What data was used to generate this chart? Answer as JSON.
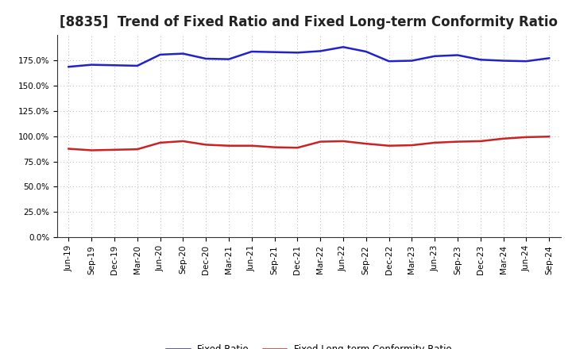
{
  "title": "[8835]  Trend of Fixed Ratio and Fixed Long-term Conformity Ratio",
  "x_labels": [
    "Jun-19",
    "Sep-19",
    "Dec-19",
    "Mar-20",
    "Jun-20",
    "Sep-20",
    "Dec-20",
    "Mar-21",
    "Jun-21",
    "Sep-21",
    "Dec-21",
    "Mar-22",
    "Jun-22",
    "Sep-22",
    "Dec-22",
    "Mar-23",
    "Jun-23",
    "Sep-23",
    "Dec-23",
    "Mar-24",
    "Jun-24",
    "Sep-24"
  ],
  "fixed_ratio": [
    168.5,
    170.5,
    170.0,
    169.5,
    180.5,
    181.5,
    176.5,
    176.0,
    183.5,
    183.0,
    182.5,
    184.0,
    188.0,
    183.5,
    174.0,
    174.5,
    179.0,
    180.0,
    175.5,
    174.5,
    174.0,
    177.0
  ],
  "fixed_lt_ratio": [
    87.5,
    86.0,
    86.5,
    87.0,
    93.5,
    95.0,
    91.5,
    90.5,
    90.5,
    89.0,
    88.5,
    94.5,
    95.0,
    92.5,
    90.5,
    91.0,
    93.5,
    94.5,
    95.0,
    97.5,
    99.0,
    99.5
  ],
  "fixed_ratio_color": "#2222cc",
  "fixed_lt_ratio_color": "#cc2222",
  "ylim": [
    0,
    200
  ],
  "yticks": [
    0.0,
    25.0,
    50.0,
    75.0,
    100.0,
    125.0,
    150.0,
    175.0
  ],
  "background_color": "#ffffff",
  "grid_color": "#aaaaaa",
  "legend_fixed_ratio": "Fixed Ratio",
  "legend_fixed_lt_ratio": "Fixed Long-term Conformity Ratio",
  "title_fontsize": 12,
  "tick_fontsize": 7.5,
  "linewidth": 1.8
}
